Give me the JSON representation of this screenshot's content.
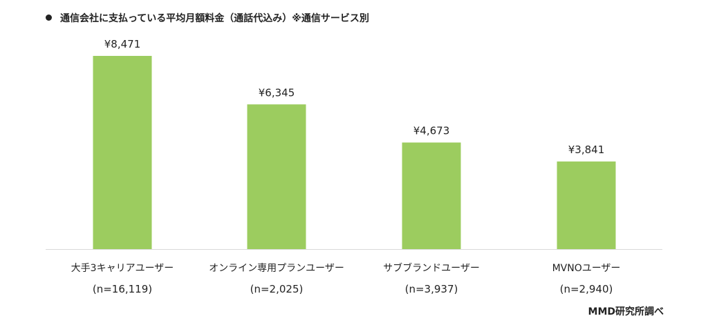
{
  "chart_data": {
    "type": "bar",
    "title": "通信会社に支払っている平均月額料金（通話代込み）※通信サービス別",
    "categories": [
      "大手3キャリアユーザー",
      "オンライン専用プランユーザー",
      "サブブランドユーザー",
      "MVNOユーザー"
    ],
    "sample_sizes": [
      "(n=16,119)",
      "(n=2,025)",
      "(n=3,937)",
      "(n=2,940)"
    ],
    "values": [
      8471,
      6345,
      4673,
      3841
    ],
    "value_labels": [
      "¥8,471",
      "¥6,345",
      "¥4,673",
      "¥3,841"
    ],
    "ylim": [
      0,
      8471
    ],
    "grid": false,
    "legend": "none",
    "bar_color": "#9ccc5f",
    "baseline_color": "#d9d9d9"
  },
  "source": "MMD研究所調べ"
}
